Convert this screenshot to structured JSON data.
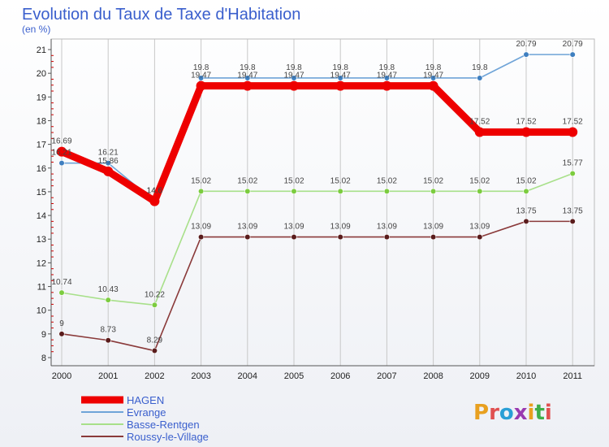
{
  "title": "Evolution du Taux de Taxe d'Habitation",
  "subtitle": "(en %)",
  "brand": "Proxiti",
  "colors": {
    "title": "#3a5fcd",
    "legend_text": "#3a5fcd",
    "grid": "#c8c8c8",
    "axis": "#555555",
    "minor_tick": "#cc0000",
    "brand_letters": [
      "#e8a020",
      "#e05050",
      "#2a9fd6",
      "#9a3ab0",
      "#e8a020",
      "#3fae49",
      "#e05050"
    ]
  },
  "chart_data": {
    "type": "line",
    "title": "Evolution du Taux de Taxe d'Habitation",
    "ylabel": "(en %)",
    "xlabel": "",
    "x": [
      2000,
      2001,
      2002,
      2003,
      2004,
      2005,
      2006,
      2007,
      2008,
      2009,
      2010,
      2011
    ],
    "ylim": [
      8,
      21
    ],
    "yticks": [
      8,
      9,
      10,
      11,
      12,
      13,
      14,
      15,
      16,
      17,
      18,
      19,
      20,
      21
    ],
    "grid": "vertical",
    "legend_position": "bottom-left",
    "series": [
      {
        "name": "HAGEN",
        "color": "#ee0000",
        "marker_color": "#ee0000",
        "emphasis": true,
        "values": [
          16.69,
          15.86,
          14.6,
          19.47,
          19.47,
          19.47,
          19.47,
          19.47,
          19.47,
          17.52,
          17.52,
          17.52
        ],
        "labels": [
          "16.69",
          "15.86",
          "14.6",
          "19.47",
          "19.47",
          "19.47",
          "19.47",
          "19.47",
          "19.47",
          "17.52",
          "17.52",
          "17.52"
        ]
      },
      {
        "name": "Evrange",
        "color": "#6fa4d8",
        "marker_color": "#3f7fc0",
        "emphasis": false,
        "values": [
          16.21,
          16.21,
          14.6,
          19.8,
          19.8,
          19.8,
          19.8,
          19.8,
          19.8,
          19.8,
          20.79,
          20.79
        ],
        "labels": [
          "16.21",
          "16.21",
          "14.6",
          "19.8",
          "19.8",
          "19.8",
          "19.8",
          "19.8",
          "19.8",
          "19.8",
          "20.79",
          "20.79"
        ]
      },
      {
        "name": "Basse-Rentgen",
        "color": "#a8e08a",
        "marker_color": "#7ccc3f",
        "emphasis": false,
        "values": [
          10.74,
          10.43,
          10.22,
          15.02,
          15.02,
          15.02,
          15.02,
          15.02,
          15.02,
          15.02,
          15.02,
          15.77
        ],
        "labels": [
          "10.74",
          "10.43",
          "10.22",
          "15.02",
          "15.02",
          "15.02",
          "15.02",
          "15.02",
          "15.02",
          "15.02",
          "15.02",
          "15.77"
        ]
      },
      {
        "name": "Roussy-le-Village",
        "color": "#8a3a3a",
        "marker_color": "#5a1c1c",
        "emphasis": false,
        "values": [
          9,
          8.73,
          8.29,
          13.09,
          13.09,
          13.09,
          13.09,
          13.09,
          13.09,
          13.09,
          13.75,
          13.75
        ],
        "labels": [
          "9",
          "8.73",
          "8.29",
          "13.09",
          "13.09",
          "13.09",
          "13.09",
          "13.09",
          "13.09",
          "13.09",
          "13.75",
          "13.75"
        ]
      }
    ]
  }
}
